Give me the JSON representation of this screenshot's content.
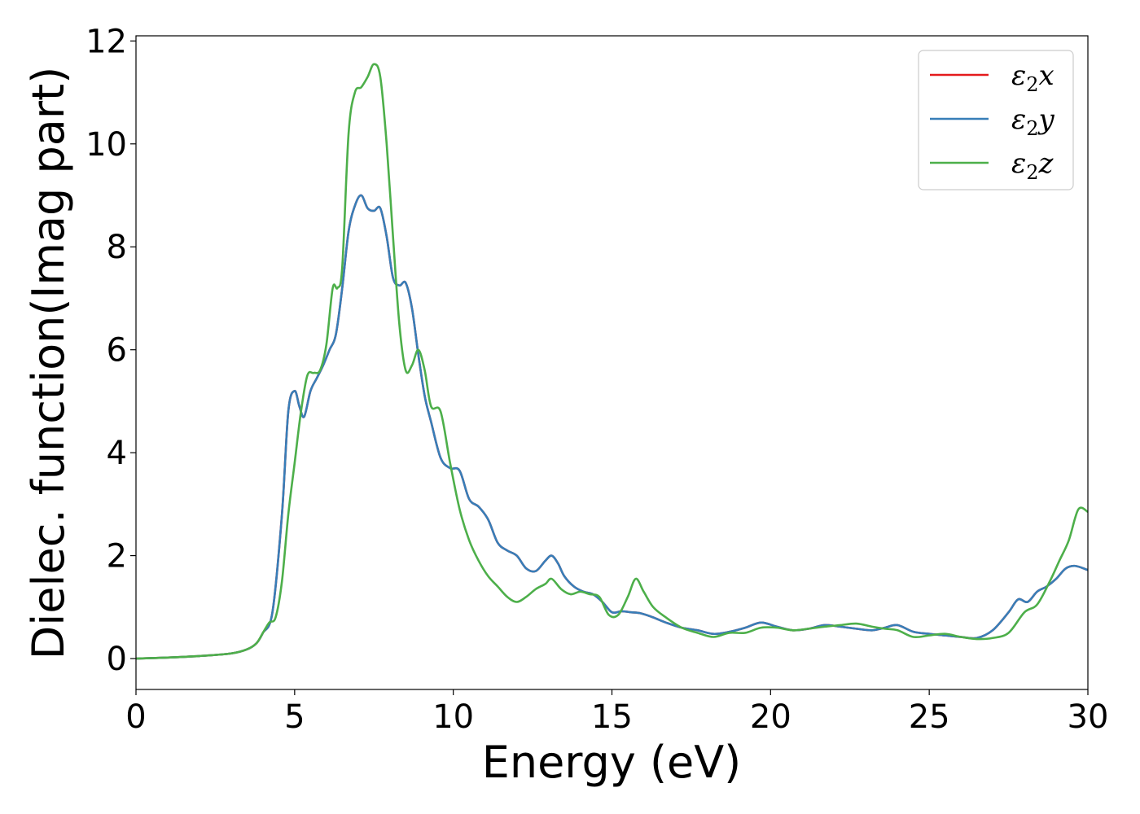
{
  "chart_data": {
    "type": "line",
    "xlabel": "Energy (eV)",
    "ylabel": "Dielec. function(Imag part)",
    "xlim": [
      0,
      30
    ],
    "ylim": [
      -0.6,
      12.1
    ],
    "xticks": [
      0,
      5,
      10,
      15,
      20,
      25,
      30
    ],
    "xtick_labels": [
      "0",
      "5",
      "10",
      "15",
      "20",
      "25",
      "30"
    ],
    "yticks": [
      0,
      2,
      4,
      6,
      8,
      10,
      12
    ],
    "ytick_labels": [
      "0",
      "2",
      "4",
      "6",
      "8",
      "10",
      "12"
    ],
    "grid": false,
    "legend_position": "top-right",
    "series": [
      {
        "name": "ε2x",
        "legend_base": "ε",
        "legend_sub": "2",
        "legend_var": "x",
        "color": "#e41a1c",
        "x": [
          0,
          1,
          2,
          3,
          3.5,
          3.8,
          4.0,
          4.3,
          4.6,
          4.8,
          5.0,
          5.15,
          5.3,
          5.5,
          5.7,
          5.9,
          6.1,
          6.3,
          6.5,
          6.7,
          6.9,
          7.1,
          7.3,
          7.5,
          7.7,
          7.9,
          8.1,
          8.3,
          8.5,
          8.7,
          8.9,
          9.1,
          9.3,
          9.6,
          9.9,
          10.2,
          10.5,
          10.8,
          11.1,
          11.4,
          11.7,
          12.0,
          12.3,
          12.6,
          12.9,
          13.1,
          13.3,
          13.5,
          13.8,
          14.1,
          14.4,
          14.7,
          15.0,
          15.3,
          15.6,
          15.9,
          16.3,
          16.7,
          17.2,
          17.7,
          18.2,
          18.7,
          19.2,
          19.7,
          20.2,
          20.7,
          21.2,
          21.7,
          22.2,
          22.7,
          23.2,
          23.6,
          24.0,
          24.5,
          25.0,
          25.5,
          26.0,
          26.5,
          27.0,
          27.5,
          27.8,
          28.1,
          28.4,
          28.7,
          29.0,
          29.3,
          29.6,
          30.0
        ],
        "values": [
          0.0,
          0.02,
          0.05,
          0.1,
          0.18,
          0.3,
          0.5,
          0.9,
          2.8,
          4.8,
          5.2,
          4.9,
          4.7,
          5.2,
          5.45,
          5.7,
          6.0,
          6.3,
          7.2,
          8.3,
          8.8,
          9.0,
          8.75,
          8.7,
          8.75,
          8.2,
          7.4,
          7.25,
          7.3,
          6.8,
          5.9,
          5.1,
          4.6,
          3.9,
          3.7,
          3.65,
          3.1,
          2.95,
          2.7,
          2.25,
          2.1,
          2.0,
          1.75,
          1.7,
          1.9,
          2.0,
          1.85,
          1.6,
          1.4,
          1.3,
          1.25,
          1.1,
          0.9,
          0.92,
          0.9,
          0.88,
          0.8,
          0.7,
          0.6,
          0.55,
          0.48,
          0.52,
          0.6,
          0.7,
          0.62,
          0.55,
          0.58,
          0.65,
          0.62,
          0.58,
          0.55,
          0.6,
          0.65,
          0.52,
          0.48,
          0.45,
          0.42,
          0.4,
          0.55,
          0.9,
          1.15,
          1.1,
          1.3,
          1.4,
          1.55,
          1.75,
          1.8,
          1.72
        ]
      },
      {
        "name": "ε2y",
        "legend_base": "ε",
        "legend_sub": "2",
        "legend_var": "y",
        "color": "#377eb8",
        "x": [
          0,
          1,
          2,
          3,
          3.5,
          3.8,
          4.0,
          4.3,
          4.6,
          4.8,
          5.0,
          5.15,
          5.3,
          5.5,
          5.7,
          5.9,
          6.1,
          6.3,
          6.5,
          6.7,
          6.9,
          7.1,
          7.3,
          7.5,
          7.7,
          7.9,
          8.1,
          8.3,
          8.5,
          8.7,
          8.9,
          9.1,
          9.3,
          9.6,
          9.9,
          10.2,
          10.5,
          10.8,
          11.1,
          11.4,
          11.7,
          12.0,
          12.3,
          12.6,
          12.9,
          13.1,
          13.3,
          13.5,
          13.8,
          14.1,
          14.4,
          14.7,
          15.0,
          15.3,
          15.6,
          15.9,
          16.3,
          16.7,
          17.2,
          17.7,
          18.2,
          18.7,
          19.2,
          19.7,
          20.2,
          20.7,
          21.2,
          21.7,
          22.2,
          22.7,
          23.2,
          23.6,
          24.0,
          24.5,
          25.0,
          25.5,
          26.0,
          26.5,
          27.0,
          27.5,
          27.8,
          28.1,
          28.4,
          28.7,
          29.0,
          29.3,
          29.6,
          30.0
        ],
        "values": [
          0.0,
          0.02,
          0.05,
          0.1,
          0.18,
          0.3,
          0.5,
          0.9,
          2.8,
          4.8,
          5.2,
          4.9,
          4.7,
          5.2,
          5.45,
          5.7,
          6.0,
          6.3,
          7.2,
          8.3,
          8.8,
          9.0,
          8.75,
          8.7,
          8.75,
          8.2,
          7.4,
          7.25,
          7.3,
          6.8,
          5.9,
          5.1,
          4.6,
          3.9,
          3.7,
          3.65,
          3.1,
          2.95,
          2.7,
          2.25,
          2.1,
          2.0,
          1.75,
          1.7,
          1.9,
          2.0,
          1.85,
          1.6,
          1.4,
          1.3,
          1.25,
          1.1,
          0.9,
          0.92,
          0.9,
          0.88,
          0.8,
          0.7,
          0.6,
          0.55,
          0.48,
          0.52,
          0.6,
          0.7,
          0.62,
          0.55,
          0.58,
          0.65,
          0.62,
          0.58,
          0.55,
          0.6,
          0.65,
          0.52,
          0.48,
          0.45,
          0.42,
          0.4,
          0.55,
          0.9,
          1.15,
          1.1,
          1.3,
          1.4,
          1.55,
          1.75,
          1.8,
          1.72
        ]
      },
      {
        "name": "ε2z",
        "legend_base": "ε",
        "legend_sub": "2",
        "legend_var": "z",
        "color": "#4daf4a",
        "x": [
          0,
          1,
          2,
          3,
          3.5,
          3.8,
          4.0,
          4.2,
          4.4,
          4.6,
          4.8,
          5.0,
          5.2,
          5.4,
          5.6,
          5.8,
          6.0,
          6.2,
          6.35,
          6.5,
          6.7,
          6.9,
          7.1,
          7.3,
          7.5,
          7.7,
          7.9,
          8.1,
          8.3,
          8.5,
          8.7,
          8.9,
          9.1,
          9.3,
          9.6,
          9.9,
          10.2,
          10.5,
          10.8,
          11.1,
          11.4,
          11.7,
          12.0,
          12.3,
          12.6,
          12.9,
          13.1,
          13.4,
          13.7,
          14.0,
          14.3,
          14.6,
          14.9,
          15.2,
          15.5,
          15.75,
          16.0,
          16.3,
          16.7,
          17.2,
          17.7,
          18.2,
          18.7,
          19.2,
          19.7,
          20.2,
          20.7,
          21.2,
          21.7,
          22.2,
          22.7,
          23.2,
          23.6,
          24.0,
          24.5,
          25.0,
          25.5,
          26.0,
          26.5,
          27.0,
          27.5,
          28.0,
          28.4,
          28.8,
          29.1,
          29.4,
          29.7,
          30.0
        ],
        "values": [
          0.0,
          0.02,
          0.05,
          0.1,
          0.18,
          0.3,
          0.5,
          0.7,
          0.8,
          1.5,
          2.8,
          3.8,
          4.8,
          5.5,
          5.55,
          5.6,
          6.1,
          7.2,
          7.2,
          7.6,
          10.2,
          11.0,
          11.1,
          11.3,
          11.55,
          11.3,
          10.0,
          8.2,
          6.5,
          5.6,
          5.7,
          6.0,
          5.6,
          4.9,
          4.8,
          3.8,
          2.9,
          2.3,
          1.9,
          1.6,
          1.4,
          1.2,
          1.1,
          1.2,
          1.35,
          1.45,
          1.55,
          1.35,
          1.25,
          1.3,
          1.25,
          1.2,
          0.85,
          0.85,
          1.2,
          1.55,
          1.3,
          1.0,
          0.8,
          0.6,
          0.5,
          0.42,
          0.5,
          0.5,
          0.6,
          0.6,
          0.55,
          0.58,
          0.62,
          0.65,
          0.68,
          0.62,
          0.58,
          0.55,
          0.42,
          0.45,
          0.48,
          0.42,
          0.38,
          0.4,
          0.5,
          0.9,
          1.05,
          1.5,
          1.9,
          2.3,
          2.9,
          2.85
        ]
      }
    ]
  }
}
